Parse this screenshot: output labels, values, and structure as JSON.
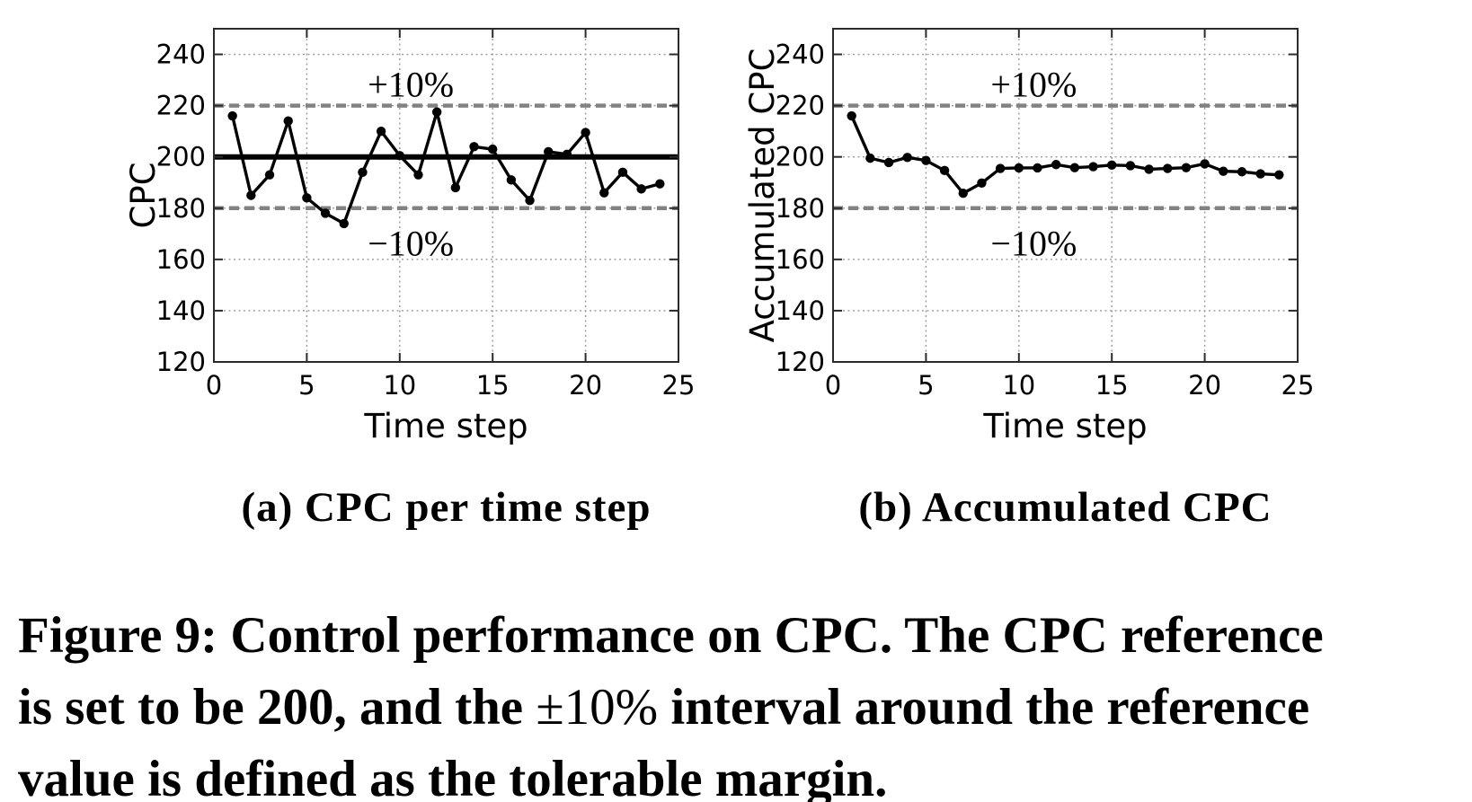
{
  "figure": {
    "caption": {
      "line1": "Figure 9: Control performance on CPC. The CPC reference",
      "line2_pre": "is set to be 200, and the ",
      "line2_math": "±10%",
      "line2_post": " interval around the reference",
      "line3": "value is defined as the tolerable margin."
    }
  },
  "colors": {
    "background": "#ffffff",
    "series": "#000000",
    "marker": "#000000",
    "reference_line": "#000000",
    "band_dash": "#828282",
    "grid": "#999999",
    "spine": "#2b2b2b",
    "text": "#000000"
  },
  "chart_data": [
    {
      "id": "a",
      "type": "line",
      "title": "(a) CPC per time step",
      "xlabel": "Time step",
      "ylabel": "CPC",
      "xlim": [
        0,
        25
      ],
      "ylim": [
        120,
        250
      ],
      "xticks": [
        0,
        5,
        10,
        15,
        20,
        25
      ],
      "yticks": [
        120,
        140,
        160,
        180,
        200,
        220,
        240
      ],
      "grid": true,
      "legend": "none",
      "reference_line": 200,
      "band_lines": [
        220,
        180
      ],
      "annotations": [
        {
          "text": "+10%",
          "x": 10.6,
          "y": 228.5
        },
        {
          "text": "−10%",
          "x": 10.6,
          "y": 166.5
        }
      ],
      "x": [
        1,
        2,
        3,
        4,
        5,
        6,
        7,
        8,
        9,
        10,
        11,
        12,
        13,
        14,
        15,
        16,
        17,
        18,
        19,
        20,
        21,
        22,
        23,
        24
      ],
      "y": [
        216,
        185,
        193,
        214,
        184,
        178,
        174,
        194,
        210,
        200.5,
        193,
        217.5,
        188,
        204,
        203,
        191,
        183,
        202,
        201,
        209.5,
        186,
        194,
        187.5,
        189.5
      ]
    },
    {
      "id": "b",
      "type": "line",
      "title": "(b) Accumulated CPC",
      "xlabel": "Time step",
      "ylabel": "Accumulated CPC",
      "xlim": [
        0,
        25
      ],
      "ylim": [
        120,
        250
      ],
      "xticks": [
        0,
        5,
        10,
        15,
        20,
        25
      ],
      "yticks": [
        120,
        140,
        160,
        180,
        200,
        220,
        240
      ],
      "grid": true,
      "legend": "none",
      "reference_line": null,
      "band_lines": [
        220,
        180
      ],
      "annotations": [
        {
          "text": "+10%",
          "x": 10.8,
          "y": 228.5
        },
        {
          "text": "−10%",
          "x": 10.8,
          "y": 166.5
        }
      ],
      "x": [
        1,
        2,
        3,
        4,
        5,
        6,
        7,
        8,
        9,
        10,
        11,
        12,
        13,
        14,
        15,
        16,
        17,
        18,
        19,
        20,
        21,
        22,
        23,
        24
      ],
      "y": [
        216,
        199.5,
        197.8,
        199.8,
        198.6,
        194.7,
        185.8,
        189.8,
        195.5,
        195.7,
        195.7,
        197,
        195.8,
        196.2,
        196.8,
        196.6,
        195.2,
        195.5,
        195.8,
        197.3,
        194.4,
        194.2,
        193.4,
        193
      ]
    }
  ]
}
